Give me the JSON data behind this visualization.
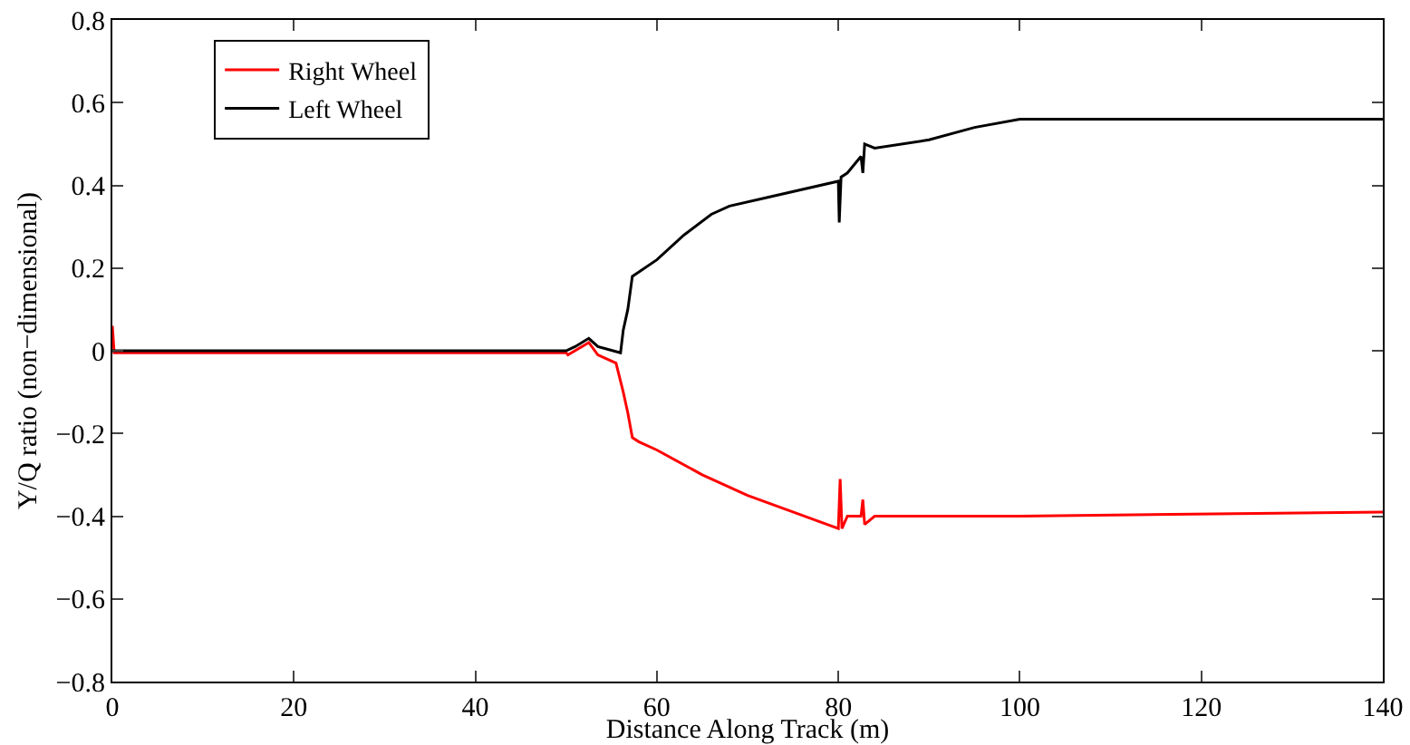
{
  "chart_data": {
    "type": "line",
    "xlabel": "Distance Along Track (m)",
    "ylabel": "Y/Q ratio (non−dimensional)",
    "xlim": [
      0,
      140
    ],
    "xticks": [
      0,
      20,
      40,
      60,
      80,
      100,
      120,
      140
    ],
    "ylim": [
      -0.8,
      0.8
    ],
    "yticks": [
      {
        "value": -0.8,
        "label": "−0.8"
      },
      {
        "value": -0.6,
        "label": "−0.6"
      },
      {
        "value": -0.4,
        "label": "−0.4"
      },
      {
        "value": -0.2,
        "label": "−0.2"
      },
      0,
      0.2,
      0.4,
      0.6,
      0.8
    ],
    "grid": false,
    "legend": "top left",
    "line_style": "solid",
    "marker": "none",
    "series": [
      {
        "name": "Right Wheel",
        "color": "#ff0000",
        "x": [
          0,
          0.2,
          50,
          50.2,
          52.5,
          53.5,
          55.5,
          56.3,
          56.8,
          57.3,
          58,
          60,
          65,
          70,
          75,
          80,
          80.2,
          80.4,
          81,
          82.5,
          82.7,
          82.9,
          84,
          100,
          140
        ],
        "values": [
          0.06,
          -0.005,
          -0.005,
          -0.01,
          0.02,
          -0.01,
          -0.03,
          -0.1,
          -0.15,
          -0.21,
          -0.22,
          -0.24,
          -0.3,
          -0.35,
          -0.39,
          -0.43,
          -0.31,
          -0.43,
          -0.4,
          -0.4,
          -0.36,
          -0.42,
          -0.4,
          -0.4,
          -0.39
        ]
      },
      {
        "name": "Left Wheel",
        "color": "#000000",
        "x": [
          0,
          50,
          51,
          52.5,
          53.5,
          56,
          56.3,
          56.8,
          57.3,
          58,
          60,
          63,
          66,
          68,
          72,
          80,
          80.1,
          80.3,
          81,
          82.5,
          82.7,
          82.9,
          84,
          90,
          95,
          100,
          140
        ],
        "values": [
          0,
          0,
          0.01,
          0.03,
          0.01,
          -0.005,
          0.05,
          0.1,
          0.18,
          0.19,
          0.22,
          0.28,
          0.33,
          0.35,
          0.37,
          0.41,
          0.31,
          0.42,
          0.43,
          0.47,
          0.43,
          0.5,
          0.49,
          0.51,
          0.54,
          0.56,
          0.56
        ]
      }
    ]
  }
}
